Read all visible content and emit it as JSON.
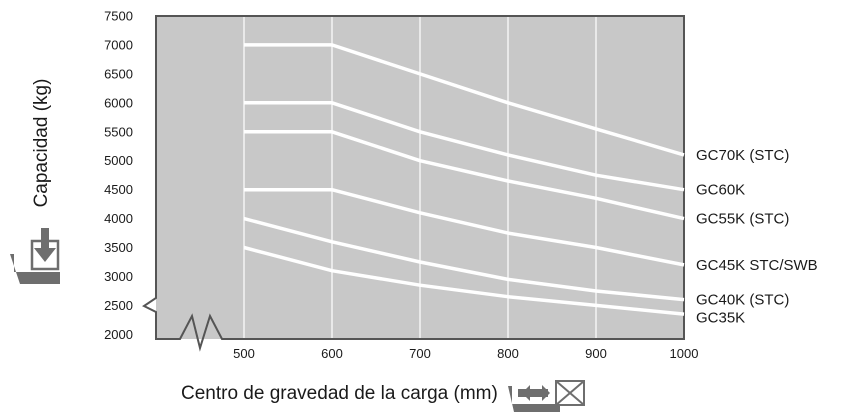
{
  "chart_data": {
    "type": "line",
    "title": "",
    "xlabel": "Centro de gravedad de la carga (mm)",
    "ylabel": "Capacidad (kg)",
    "x": [
      500,
      600,
      700,
      800,
      900,
      1000
    ],
    "x_ticks": [
      "500",
      "600",
      "700",
      "800",
      "900",
      "1000"
    ],
    "y_ticks": [
      "2000",
      "2500",
      "3000",
      "3500",
      "4000",
      "4500",
      "5000",
      "5500",
      "6000",
      "6500",
      "7000",
      "7500"
    ],
    "xlim": [
      400,
      1000
    ],
    "ylim": [
      1920,
      7500
    ],
    "y_axis_break": true,
    "x_axis_break": true,
    "grid": true,
    "legend": "series labels at right end of lines",
    "colors": {
      "plot_background": "#c8c8c8",
      "lines": "#ffffff",
      "grid": "#ffffff",
      "frame": "#555555",
      "icons": "#6e6e6e"
    },
    "series": [
      {
        "name": "GC70K (STC)",
        "values": [
          7000,
          7000,
          6500,
          6000,
          5550,
          5100
        ]
      },
      {
        "name": "GC60K",
        "values": [
          6000,
          6000,
          5500,
          5100,
          4750,
          4500
        ]
      },
      {
        "name": "GC55K (STC)",
        "values": [
          5500,
          5500,
          5000,
          4650,
          4350,
          4000
        ]
      },
      {
        "name": "GC45K STC/SWB",
        "values": [
          4500,
          4500,
          4100,
          3750,
          3500,
          3200
        ]
      },
      {
        "name": "GC40K (STC)",
        "values": [
          4000,
          3600,
          3250,
          2950,
          2750,
          2600
        ]
      },
      {
        "name": "GC35K",
        "values": [
          3500,
          3100,
          2850,
          2650,
          2500,
          2350
        ]
      }
    ]
  },
  "icons": {
    "y_axis_icon": "load-down-arrow-icon",
    "x_axis_icon": "load-center-arrow-icon"
  }
}
